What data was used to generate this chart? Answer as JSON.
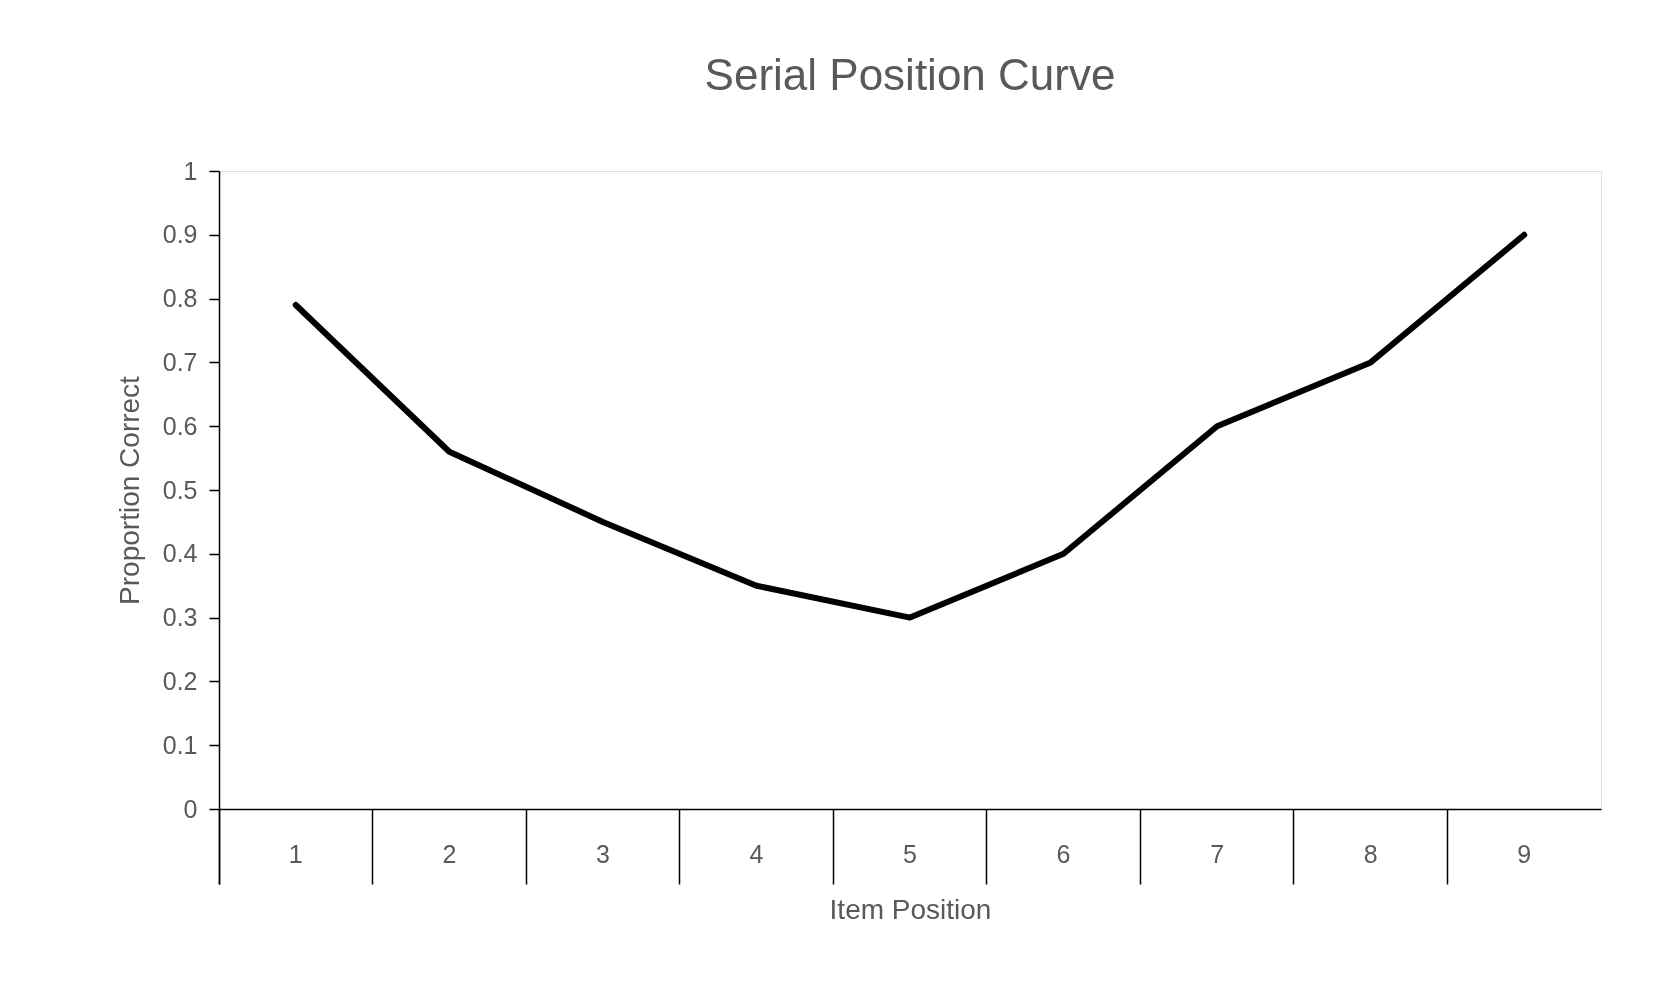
{
  "chart_data": {
    "type": "line",
    "title": "Serial Position Curve",
    "xlabel": "Item Position",
    "ylabel": "Proportion Correct",
    "categories": [
      "1",
      "2",
      "3",
      "4",
      "5",
      "6",
      "7",
      "8",
      "9"
    ],
    "series": [
      {
        "color": "#000000",
        "values": [
          0.79,
          0.56,
          0.45,
          0.35,
          0.3,
          0.4,
          0.6,
          0.7,
          0.9
        ]
      }
    ],
    "ylim": [
      0,
      1
    ],
    "yticks": [
      0,
      0.1,
      0.2,
      0.3,
      0.4,
      0.5,
      0.6,
      0.7,
      0.8,
      0.9,
      1
    ],
    "line_style": "solid"
  }
}
